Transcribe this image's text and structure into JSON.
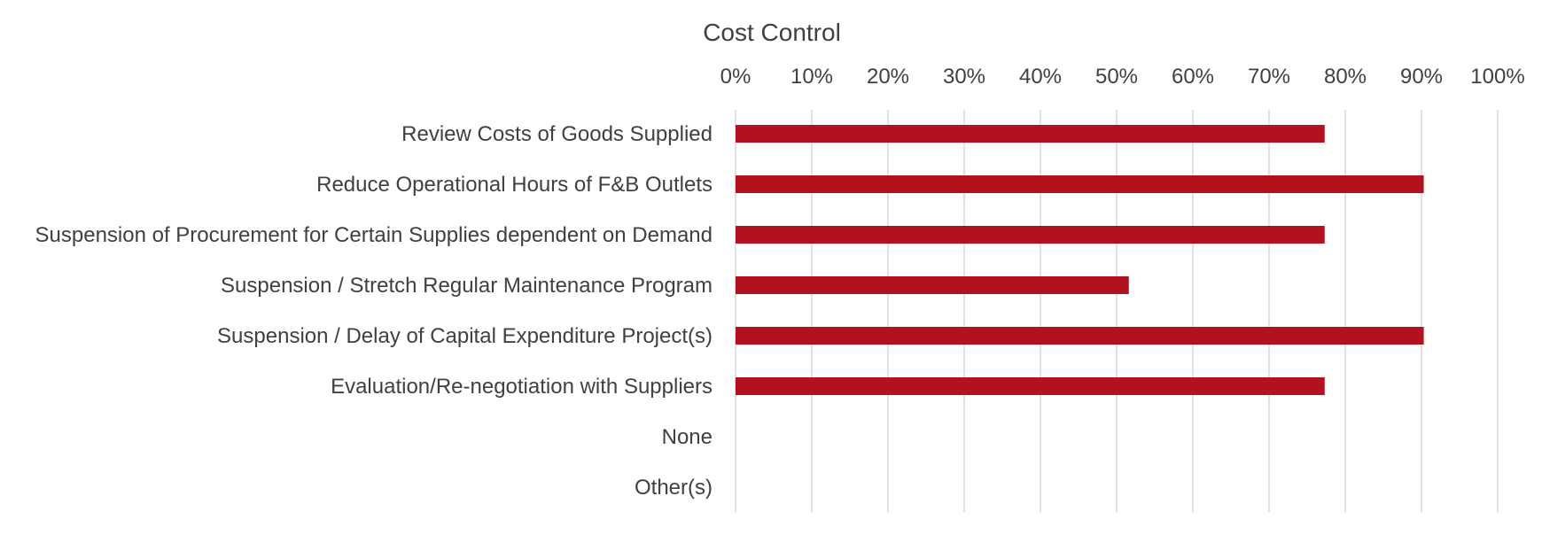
{
  "chart_data": {
    "type": "bar",
    "orientation": "horizontal",
    "title": "Cost Control",
    "xlabel": "",
    "ylabel": "",
    "xlim": [
      0,
      1
    ],
    "x_axis_position": "top",
    "ticks": [
      {
        "value": 0,
        "label": "0%"
      },
      {
        "value": 0.1,
        "label": "10%"
      },
      {
        "value": 0.2,
        "label": "20%"
      },
      {
        "value": 0.3,
        "label": "30%"
      },
      {
        "value": 0.4,
        "label": "40%"
      },
      {
        "value": 0.5,
        "label": "50%"
      },
      {
        "value": 0.6,
        "label": "60%"
      },
      {
        "value": 0.7,
        "label": "70%"
      },
      {
        "value": 0.8,
        "label": "80%"
      },
      {
        "value": 0.9,
        "label": "90%"
      },
      {
        "value": 1.0,
        "label": "100%"
      }
    ],
    "grid": true,
    "legend": "none",
    "categories": [
      "Review Costs of Goods Supplied",
      "Reduce Operational Hours of F&B Outlets",
      "Suspension of Procurement for Certain Supplies dependent on Demand",
      "Suspension / Stretch Regular Maintenance Program",
      "Suspension / Delay of Capital Expenditure Project(s)",
      "Evaluation/Re-negotiation with Suppliers",
      "None",
      "Other(s)"
    ],
    "values": [
      0.773,
      0.903,
      0.773,
      0.516,
      0.903,
      0.773,
      0,
      0
    ],
    "bar_color": "#b2121f",
    "grid_color": "#d9d9d9",
    "text_color": "#404040"
  }
}
